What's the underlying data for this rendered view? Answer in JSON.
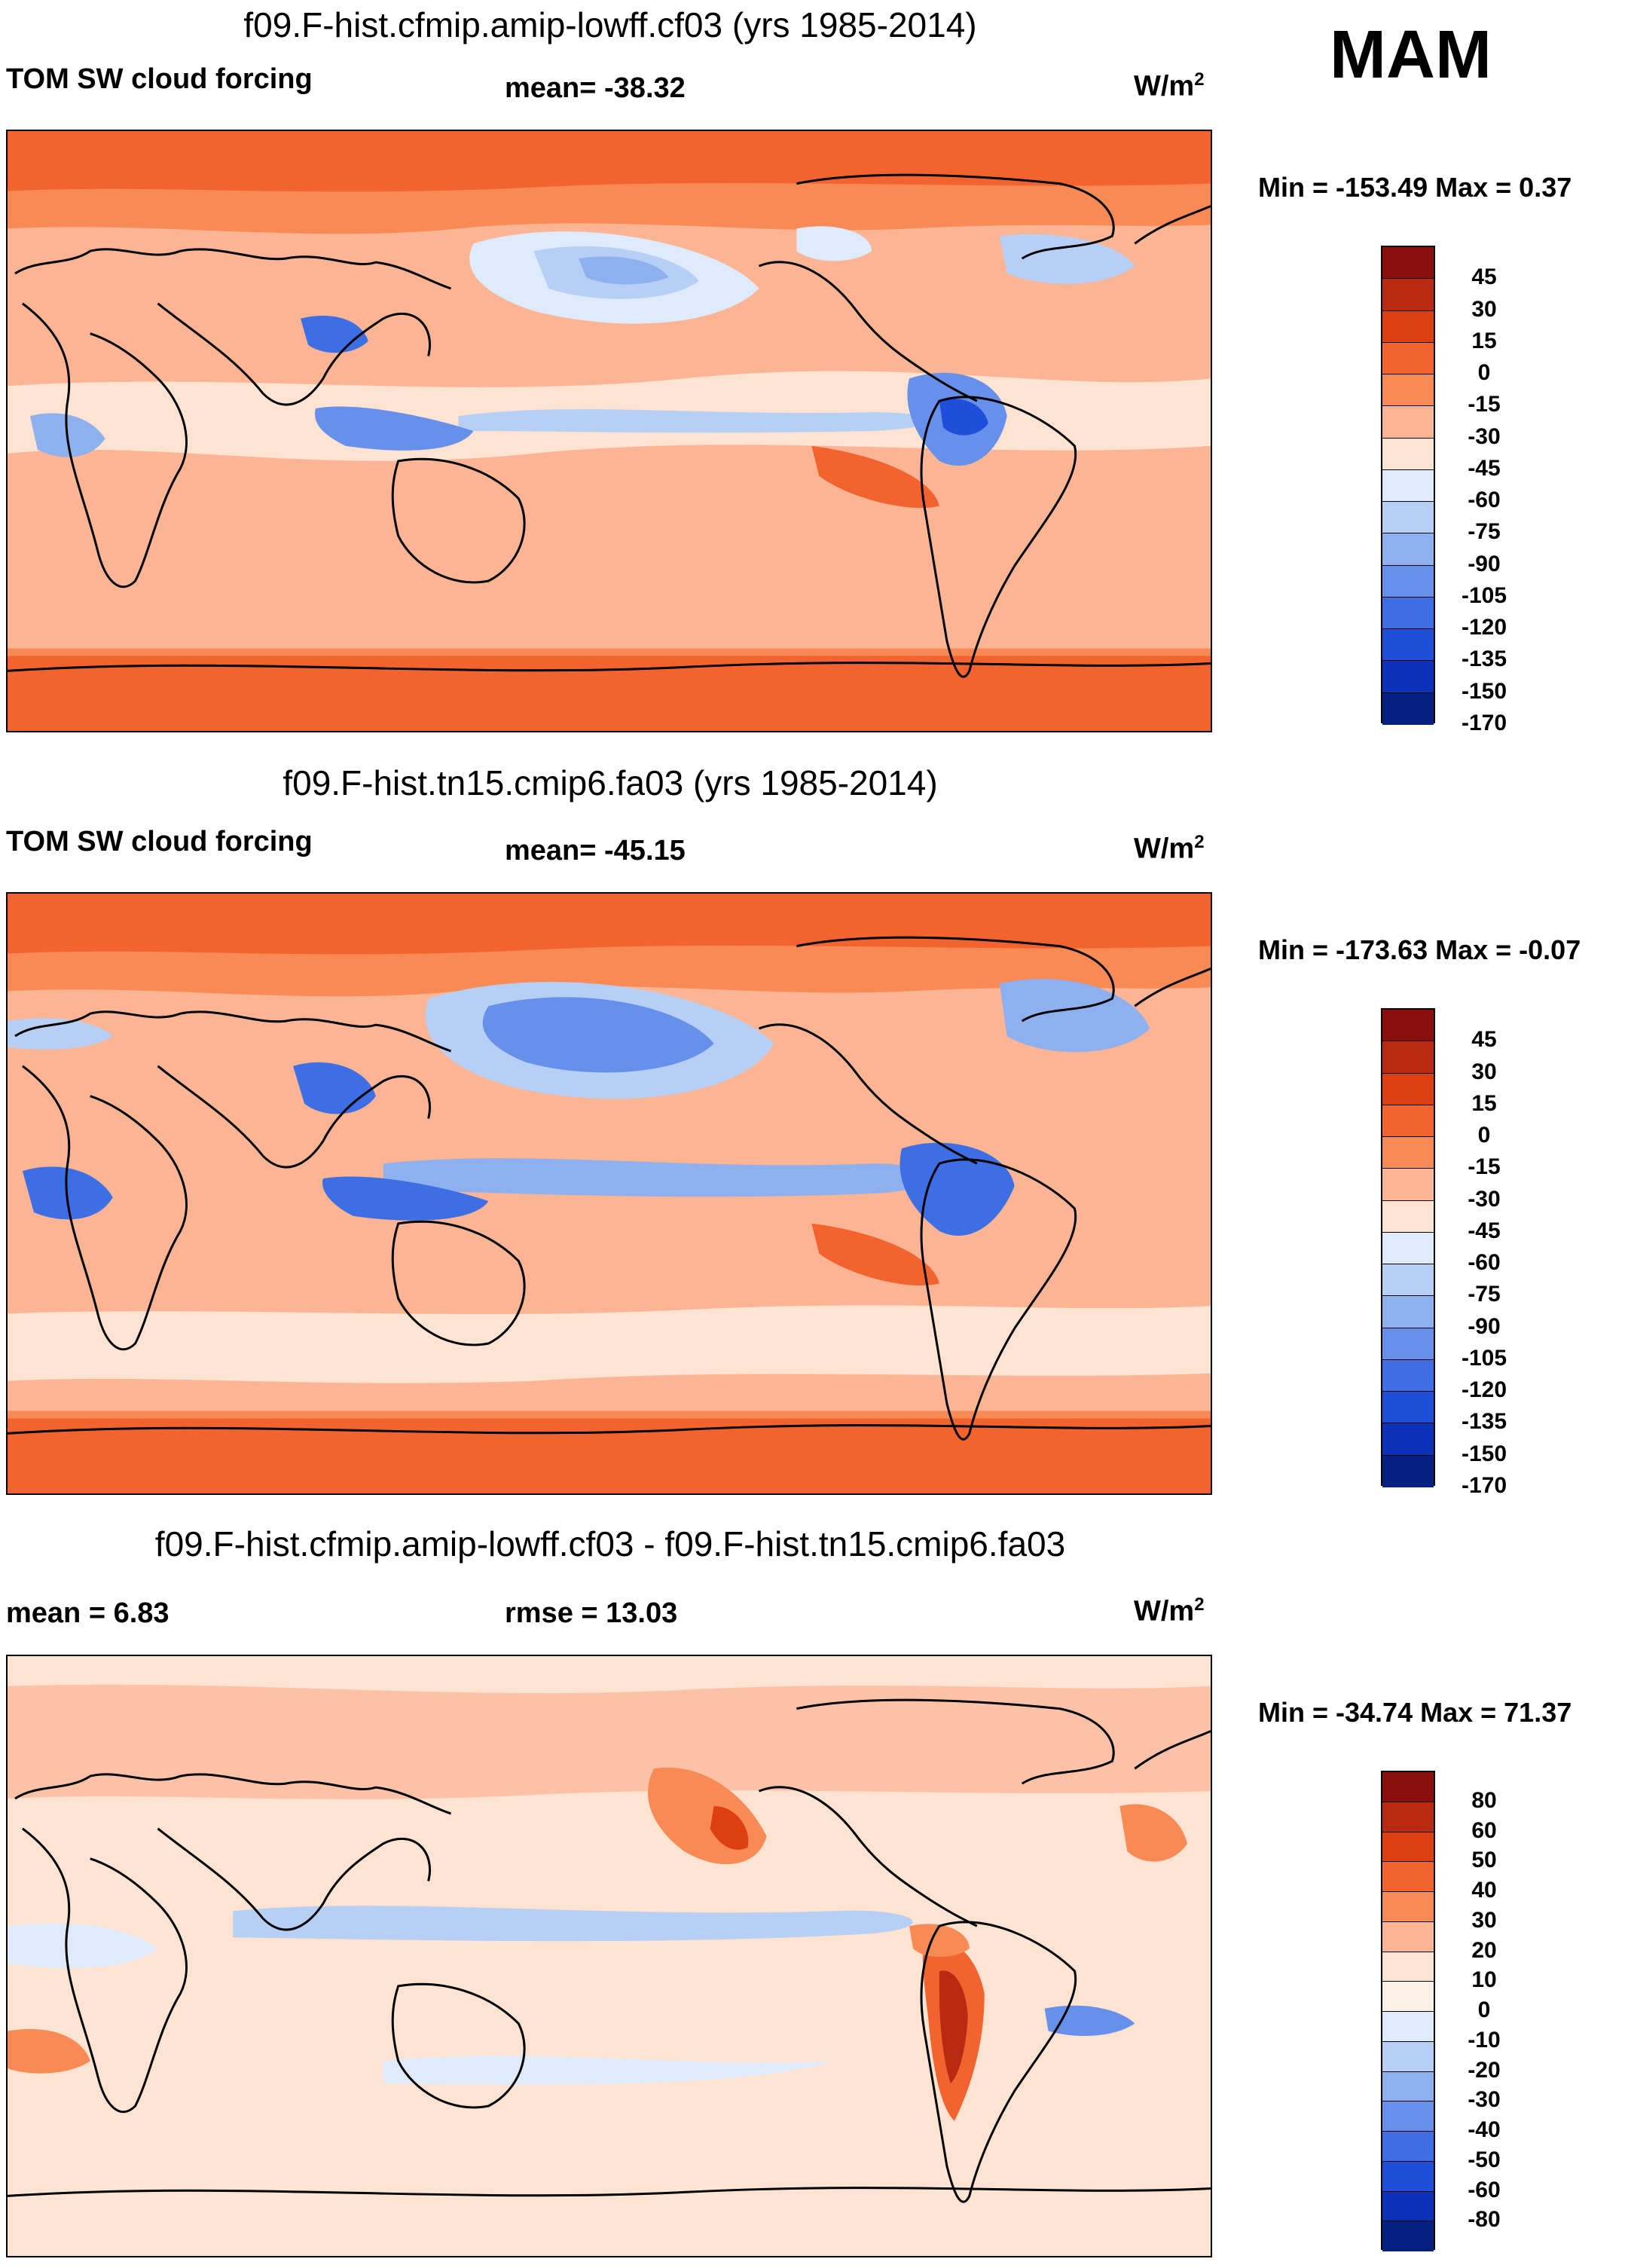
{
  "season": "MAM",
  "panels": [
    {
      "title": "f09.F-hist.cfmip.amip-lowff.cf03 (yrs 1985-2014)",
      "left_label": "TOM SW cloud forcing",
      "center_label": "mean= -38.32",
      "unit": "W/m",
      "unit_exp": "2",
      "minmax": "Min = -153.49 Max =   0.37",
      "colorbar": {
        "colors": [
          "#8b0e0e",
          "#b82a12",
          "#dd3e12",
          "#f26330",
          "#f78a55",
          "#fbb494",
          "#fde3d2",
          "#dfebfa",
          "#b7cff5",
          "#8fb0ef",
          "#6690ea",
          "#3d6ee4",
          "#1f4fd9",
          "#0b32b8",
          "#06207f"
        ],
        "labels": [
          "45",
          "30",
          "15",
          "0",
          "-15",
          "-30",
          "-45",
          "-60",
          "-75",
          "-90",
          "-105",
          "-120",
          "-135",
          "-150",
          "-170"
        ]
      }
    },
    {
      "title": "f09.F-hist.tn15.cmip6.fa03 (yrs 1985-2014)",
      "left_label": "TOM SW cloud forcing",
      "center_label": "mean= -45.15",
      "unit": "W/m",
      "unit_exp": "2",
      "minmax": "Min = -173.63 Max =  -0.07",
      "colorbar": {
        "colors": [
          "#8b0e0e",
          "#b82a12",
          "#dd3e12",
          "#f26330",
          "#f78a55",
          "#fbb494",
          "#fde3d2",
          "#dfebfa",
          "#b7cff5",
          "#8fb0ef",
          "#6690ea",
          "#3d6ee4",
          "#1f4fd9",
          "#0b32b8",
          "#06207f"
        ],
        "labels": [
          "45",
          "30",
          "15",
          "0",
          "-15",
          "-30",
          "-45",
          "-60",
          "-75",
          "-90",
          "-105",
          "-120",
          "-135",
          "-150",
          "-170"
        ]
      }
    },
    {
      "title": "f09.F-hist.cfmip.amip-lowff.cf03 - f09.F-hist.tn15.cmip6.fa03",
      "left_label": "mean =   6.83",
      "center_label": "rmse =  13.03",
      "unit": "W/m",
      "unit_exp": "2",
      "minmax": "Min = -34.74 Max =  71.37",
      "colorbar": {
        "colors": [
          "#8b0e0e",
          "#b82a12",
          "#dd3e12",
          "#f26330",
          "#f78a55",
          "#fbb494",
          "#fde3d2",
          "#fdf0e6",
          "#dfebfa",
          "#b7cff5",
          "#8fb0ef",
          "#6690ea",
          "#3d6ee4",
          "#1f4fd9",
          "#0b32b8",
          "#06207f"
        ],
        "labels": [
          "80",
          "60",
          "50",
          "40",
          "30",
          "20",
          "10",
          "0",
          "-10",
          "-20",
          "-30",
          "-40",
          "-50",
          "-60",
          "-80"
        ]
      }
    }
  ]
}
